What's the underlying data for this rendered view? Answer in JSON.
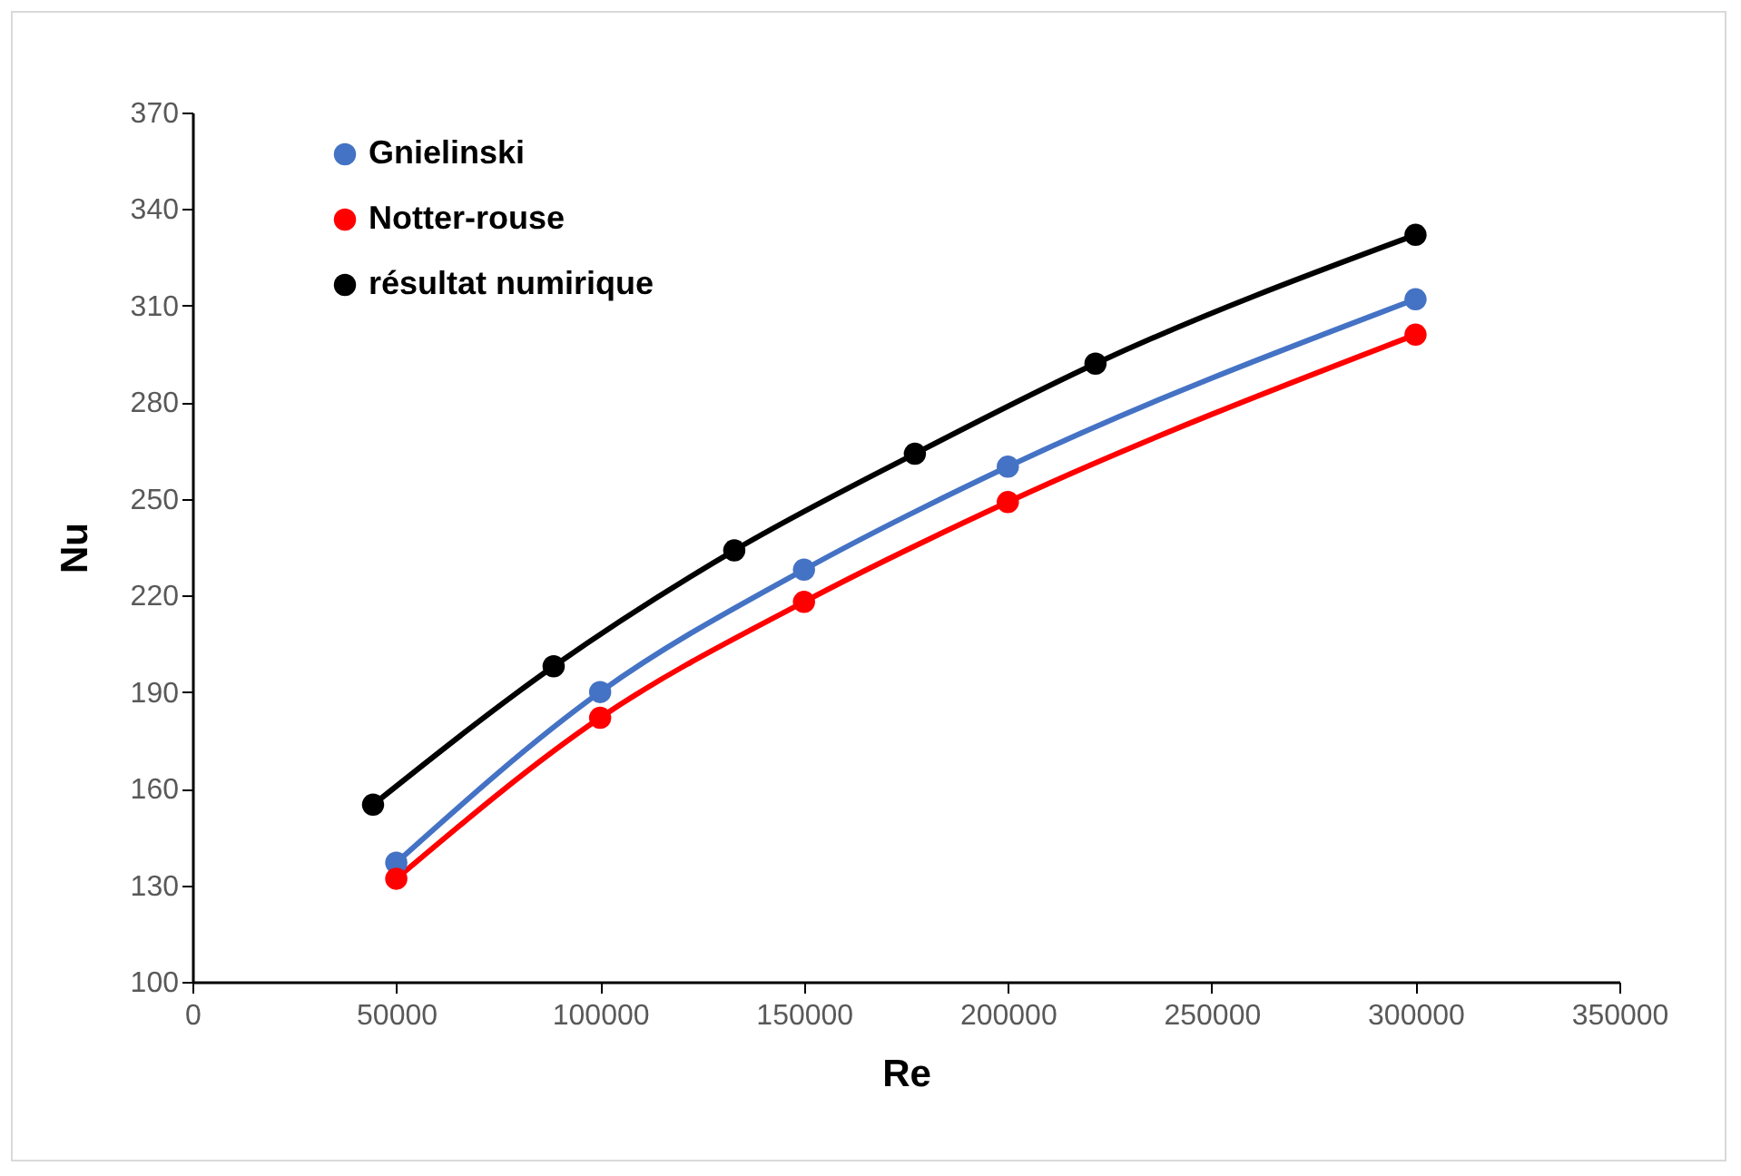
{
  "chart_data": {
    "type": "line",
    "xlabel": "Re",
    "ylabel": "Nu",
    "xlim": [
      0,
      350000
    ],
    "xticks": [
      0,
      50000,
      100000,
      150000,
      200000,
      250000,
      300000,
      350000
    ],
    "ylim": [
      100,
      370
    ],
    "yticks": [
      100,
      130,
      160,
      190,
      220,
      250,
      280,
      310,
      340,
      370
    ],
    "grid": false,
    "legend": "top left",
    "marker": "circle",
    "line_style": "solid",
    "series": [
      {
        "name": "Gnielinski",
        "color": "#4472c4",
        "x": [
          50000,
          100000,
          150000,
          200000,
          300000
        ],
        "values": [
          137,
          190,
          228,
          260,
          312
        ]
      },
      {
        "name": "Notter-rouse",
        "color": "#ff0000",
        "x": [
          50000,
          100000,
          150000,
          200000,
          300000
        ],
        "values": [
          132,
          182,
          218,
          249,
          301
        ]
      },
      {
        "name": "résultat numirique",
        "color": "#000000",
        "x": [
          44300,
          88600,
          132900,
          177200,
          221500,
          300000
        ],
        "values": [
          155,
          198,
          234,
          264,
          292,
          332
        ]
      }
    ]
  }
}
